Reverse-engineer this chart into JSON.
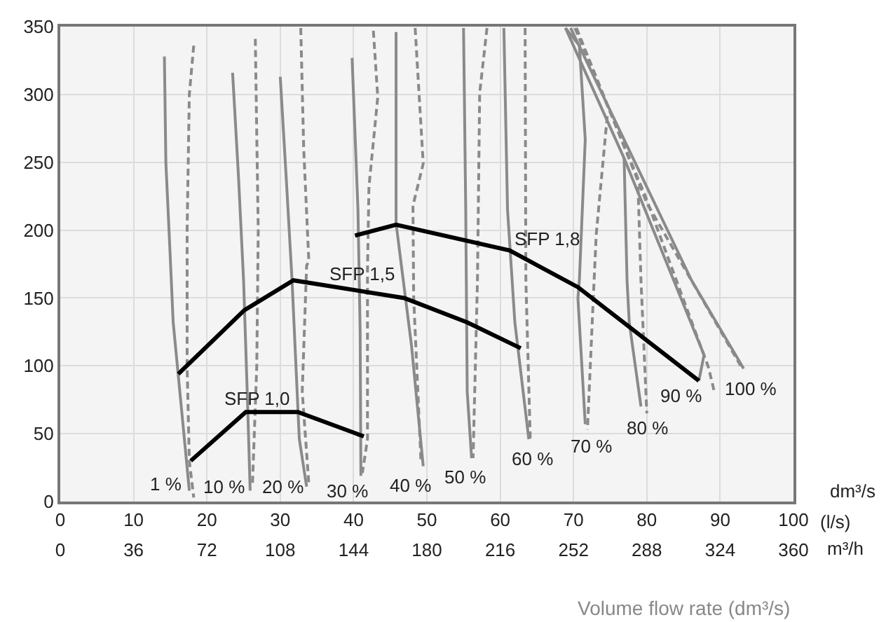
{
  "chart_data": {
    "type": "line",
    "xlabel": "Volume flow rate (dm³/s)",
    "xlim": [
      0,
      100
    ],
    "xticks": [
      0,
      10,
      20,
      30,
      40,
      50,
      60,
      70,
      80,
      90,
      100
    ],
    "x2lim": [
      0,
      360
    ],
    "x2ticks": [
      0,
      36,
      72,
      108,
      144,
      180,
      216,
      252,
      288,
      324,
      360
    ],
    "ylim": [
      0,
      350
    ],
    "yticks": [
      0,
      50,
      100,
      150,
      200,
      250,
      300,
      350
    ],
    "grid": true,
    "marker": "none",
    "series": [
      {
        "color": "#8a8a8a",
        "line_style": "solid",
        "x": [
          14.2,
          14.4,
          15.0,
          15.4,
          16.5,
          17.6
        ],
        "values": [
          328,
          250,
          180,
          132,
          70,
          8
        ]
      },
      {
        "color": "#8a8a8a",
        "line_style": "dashed",
        "x": [
          18.2,
          17.6,
          17.3,
          17.3,
          17.6,
          18.2
        ],
        "values": [
          336,
          300,
          200,
          100,
          30,
          3
        ]
      },
      {
        "color": "#8a8a8a",
        "line_style": "solid",
        "x": [
          23.5,
          24.3,
          25.0,
          25.5,
          25.9
        ],
        "values": [
          316,
          240,
          163,
          80,
          8
        ]
      },
      {
        "color": "#8a8a8a",
        "line_style": "dashed",
        "x": [
          26.6,
          26.8,
          27.0,
          26.8,
          26.2
        ],
        "values": [
          341,
          270,
          200,
          100,
          11
        ]
      },
      {
        "color": "#8a8a8a",
        "line_style": "solid",
        "x": [
          30.0,
          30.8,
          31.6,
          32.6,
          33.6
        ],
        "values": [
          313,
          240,
          164,
          46,
          11
        ]
      },
      {
        "color": "#8a8a8a",
        "line_style": "dashed",
        "x": [
          32.8,
          33.2,
          33.9,
          33.6,
          33.0,
          33.9
        ],
        "values": [
          349,
          260,
          177,
          174,
          81,
          13
        ]
      },
      {
        "color": "#8a8a8a",
        "line_style": "solid",
        "x": [
          39.8,
          40.6,
          40.9,
          41.0
        ],
        "values": [
          327,
          215,
          125,
          19
        ]
      },
      {
        "color": "#8a8a8a",
        "line_style": "dashed",
        "x": [
          42.7,
          43.3,
          42.1,
          41.9,
          41.9,
          41.2
        ],
        "values": [
          347,
          298,
          232,
          170,
          46,
          21
        ]
      },
      {
        "color": "#8a8a8a",
        "line_style": "solid",
        "x": [
          45.8,
          45.8,
          47.9,
          49.5
        ],
        "values": [
          346,
          205,
          115,
          26
        ]
      },
      {
        "color": "#8a8a8a",
        "line_style": "dashed",
        "x": [
          48.4,
          49.5,
          48.1,
          48.2,
          49.2
        ],
        "values": [
          349,
          249,
          218,
          150,
          29
        ]
      },
      {
        "color": "#8a8a8a",
        "line_style": "solid",
        "x": [
          55.0,
          55.3,
          55.5,
          56.1
        ],
        "values": [
          349,
          215,
          81,
          32
        ]
      },
      {
        "color": "#8a8a8a",
        "line_style": "dashed",
        "x": [
          58.2,
          57.2,
          56.9,
          56.3
        ],
        "values": [
          349,
          301,
          163,
          32
        ]
      },
      {
        "color": "#8a8a8a",
        "line_style": "solid",
        "x": [
          60.5,
          61.0,
          62.0,
          63.9
        ],
        "values": [
          349,
          215,
          132,
          46
        ]
      },
      {
        "color": "#8a8a8a",
        "line_style": "dashed",
        "x": [
          63.4,
          63.5,
          64.1
        ],
        "values": [
          349,
          163,
          46
        ]
      },
      {
        "color": "#8a8a8a",
        "line_style": "solid",
        "x": [
          68.9,
          70.8,
          71.6,
          70.8,
          70.6,
          71.6
        ],
        "values": [
          349,
          336,
          267,
          163,
          150,
          57
        ]
      },
      {
        "color": "#8a8a8a",
        "line_style": "dashed",
        "x": [
          74.6,
          73.1,
          72.7,
          71.9
        ],
        "values": [
          284,
          197,
          150,
          53
        ]
      },
      {
        "color": "#8a8a8a",
        "line_style": "solid",
        "x": [
          76.9,
          77.3,
          77.6,
          79.2
        ],
        "values": [
          253,
          163,
          132,
          70
        ]
      },
      {
        "color": "#8a8a8a",
        "line_style": "dashed",
        "x": [
          78.8,
          79.2,
          80.0
        ],
        "values": [
          232,
          163,
          65
        ]
      },
      {
        "color": "#8a8a8a",
        "line_style": "solid",
        "x": [
          68.9,
          76.9,
          87.8,
          87.1
        ],
        "values": [
          349,
          253,
          108,
          89
        ]
      },
      {
        "color": "#8a8a8a",
        "line_style": "dashed",
        "x": [
          70.2,
          79.8,
          88.4,
          89.2
        ],
        "values": [
          349,
          225,
          99,
          81
        ]
      },
      {
        "color": "#8a8a8a",
        "line_style": "solid",
        "x": [
          69.6,
          86.1,
          93.2
        ],
        "values": [
          349,
          163,
          98
        ]
      },
      {
        "color": "#8a8a8a",
        "line_style": "dashed",
        "x": [
          70.4,
          80.0,
          92.8
        ],
        "values": [
          349,
          220,
          100
        ]
      },
      {
        "color": "#000000",
        "line_style": "solid",
        "x": [
          17.8,
          25.3,
          32.4,
          41.4
        ],
        "values": [
          30,
          66,
          66,
          48
        ]
      },
      {
        "color": "#000000",
        "line_style": "solid",
        "x": [
          16.1,
          25.1,
          31.8,
          46.9,
          55.5,
          62.8
        ],
        "values": [
          94,
          141,
          163,
          150,
          132,
          113
        ]
      },
      {
        "color": "#000000",
        "line_style": "solid",
        "x": [
          40.2,
          45.8,
          61.3,
          70.6,
          87.1
        ],
        "values": [
          196,
          204,
          185,
          158,
          89
        ]
      }
    ],
    "annotations": [
      "1 %",
      "10 %",
      "20 %",
      "30 %",
      "40 %",
      "50 %",
      "60 %",
      "70 %",
      "80 %",
      "90 %",
      "100 %",
      "SFP 1,0",
      "SFP 1,5",
      "SFP 1,8",
      "dm³/s",
      "(l/s)",
      "m³/h"
    ]
  }
}
